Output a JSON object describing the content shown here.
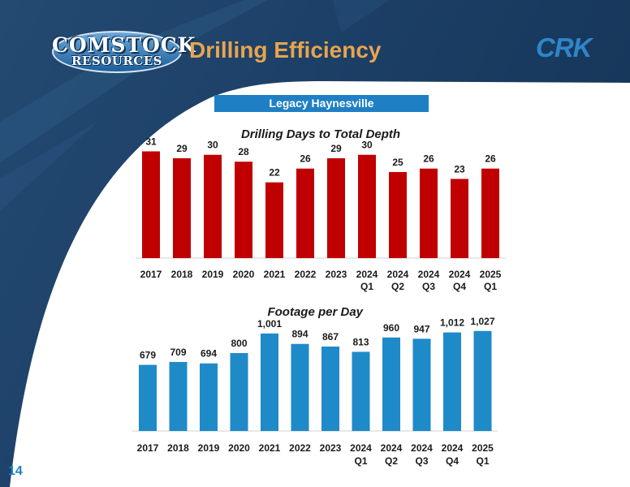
{
  "header": {
    "logo_line1": "COMSTOCK",
    "logo_line2": "RESOURCES",
    "title": "Drilling Efficiency",
    "brand": "CRK"
  },
  "subtitle": "Legacy Haynesville",
  "page_number": "14",
  "colors": {
    "days_bar": "#c00000",
    "footage_bar": "#1f8ac8",
    "title_accent": "#e8a44e",
    "subtitle_bg": "#1f7fc4"
  },
  "chart_data": [
    {
      "type": "bar",
      "title": "Drilling Days to Total Depth",
      "categories": [
        [
          "2017"
        ],
        [
          "2018"
        ],
        [
          "2019"
        ],
        [
          "2020"
        ],
        [
          "2021"
        ],
        [
          "2022"
        ],
        [
          "2023"
        ],
        [
          "2024",
          "Q1"
        ],
        [
          "2024",
          "Q2"
        ],
        [
          "2024",
          "Q3"
        ],
        [
          "2024",
          "Q4"
        ],
        [
          "2025",
          "Q1"
        ]
      ],
      "values": [
        31,
        29,
        30,
        28,
        22,
        26,
        29,
        30,
        25,
        26,
        23,
        26
      ],
      "labels": [
        "31",
        "29",
        "30",
        "28",
        "22",
        "26",
        "29",
        "30",
        "25",
        "26",
        "23",
        "26"
      ],
      "ylim": [
        0,
        33
      ],
      "grid": false,
      "xlabel": "",
      "ylabel": ""
    },
    {
      "type": "bar",
      "title": "Footage per Day",
      "categories": [
        [
          "2017"
        ],
        [
          "2018"
        ],
        [
          "2019"
        ],
        [
          "2020"
        ],
        [
          "2021"
        ],
        [
          "2022"
        ],
        [
          "2023"
        ],
        [
          "2024",
          "Q1"
        ],
        [
          "2024",
          "Q2"
        ],
        [
          "2024",
          "Q3"
        ],
        [
          "2024",
          "Q4"
        ],
        [
          "2025",
          "Q1"
        ]
      ],
      "values": [
        679,
        709,
        694,
        800,
        1001,
        894,
        867,
        813,
        960,
        947,
        1012,
        1027
      ],
      "labels": [
        "679",
        "709",
        "694",
        "800",
        "1,001",
        "894",
        "867",
        "813",
        "960",
        "947",
        "1,012",
        "1,027"
      ],
      "ylim": [
        0,
        1100
      ],
      "grid": false,
      "xlabel": "",
      "ylabel": ""
    }
  ]
}
